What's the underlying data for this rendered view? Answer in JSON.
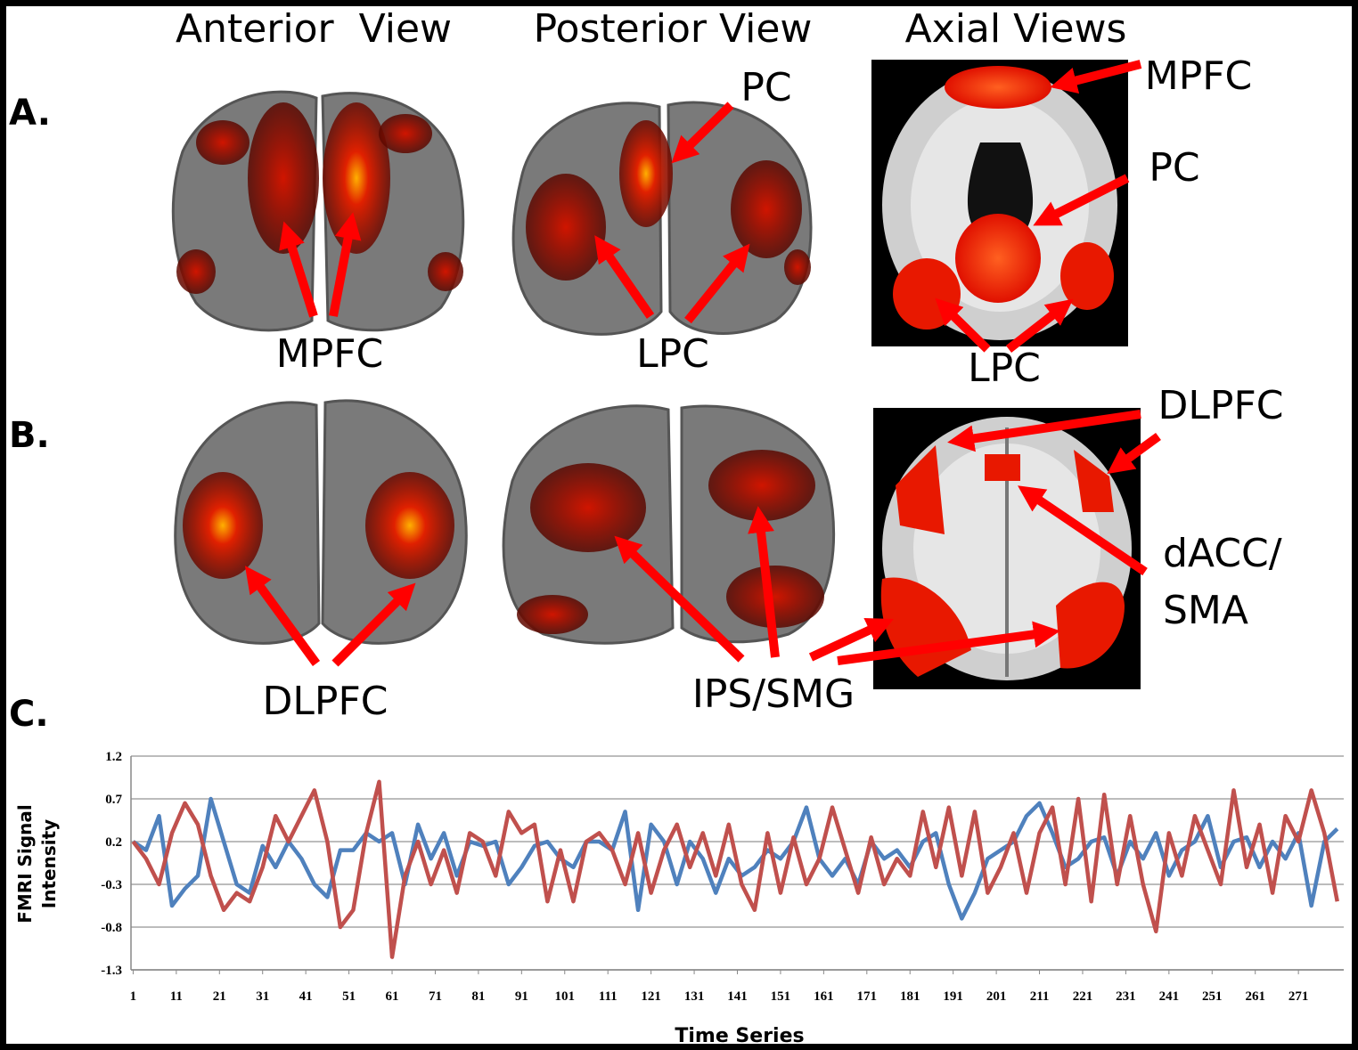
{
  "figure": {
    "columns": [
      "Anterior  View",
      "Posterior View",
      "Axial Views"
    ],
    "panel_letters": [
      "A.",
      "B.",
      "C."
    ],
    "row_a": {
      "anterior": "MPFC",
      "posterior_top": "PC",
      "posterior_bottom": "LPC",
      "axial_top": "MPFC",
      "axial_mid": "PC",
      "axial_bottom": "LPC"
    },
    "row_b": {
      "anterior": "DLPFC",
      "posterior": "IPS/SMG",
      "axial_top": "DLPFC",
      "axial_mid": [
        "dACC/",
        "SMA"
      ]
    }
  },
  "chart_data": {
    "type": "line",
    "xlabel": "Time Series",
    "ylabel": [
      "FMRI Signal",
      "Intensity"
    ],
    "x": [
      1,
      4,
      7,
      10,
      13,
      16,
      19,
      22,
      25,
      28,
      31,
      34,
      37,
      40,
      43,
      46,
      49,
      52,
      55,
      58,
      61,
      64,
      67,
      70,
      73,
      76,
      79,
      82,
      85,
      88,
      91,
      94,
      97,
      100,
      103,
      106,
      109,
      112,
      115,
      118,
      121,
      124,
      127,
      130,
      133,
      136,
      139,
      142,
      145,
      148,
      151,
      154,
      157,
      160,
      163,
      166,
      169,
      172,
      175,
      178,
      181,
      184,
      187,
      190,
      193,
      196,
      199,
      202,
      205,
      208,
      211,
      214,
      217,
      220,
      223,
      226,
      229,
      232,
      235,
      238,
      241,
      244,
      247,
      250,
      253,
      256,
      259,
      262,
      265,
      268,
      271,
      274,
      277,
      280
    ],
    "series": [
      {
        "color": "#4f81bd",
        "values": [
          0.2,
          0.1,
          0.5,
          -0.55,
          -0.35,
          -0.2,
          0.7,
          0.2,
          -0.3,
          -0.4,
          0.15,
          -0.1,
          0.2,
          0,
          -0.3,
          -0.45,
          0.1,
          0.1,
          0.3,
          0.2,
          0.3,
          -0.3,
          0.4,
          0,
          0.3,
          -0.2,
          0.2,
          0.15,
          0.2,
          -0.3,
          -0.1,
          0.15,
          0.2,
          0,
          -0.1,
          0.2,
          0.2,
          0.1,
          0.55,
          -0.6,
          0.4,
          0.2,
          -0.3,
          0.2,
          0,
          -0.4,
          0,
          -0.2,
          -0.1,
          0.1,
          0,
          0.2,
          0.6,
          0,
          -0.2,
          0,
          -0.3,
          0.2,
          0,
          0.1,
          -0.1,
          0.2,
          0.3,
          -0.3,
          -0.7,
          -0.4,
          0,
          0.1,
          0.2,
          0.5,
          0.65,
          0.3,
          -0.1,
          0,
          0.2,
          0.25,
          -0.2,
          0.2,
          0,
          0.3,
          -0.2,
          0.1,
          0.2,
          0.5,
          -0.1,
          0.2,
          0.25,
          -0.1,
          0.2,
          0,
          0.3,
          -0.55,
          0.2,
          0.35
        ]
      },
      {
        "color": "#c0504d",
        "values": [
          0.2,
          0,
          -0.3,
          0.3,
          0.65,
          0.4,
          -0.2,
          -0.6,
          -0.4,
          -0.5,
          -0.1,
          0.5,
          0.2,
          0.5,
          0.8,
          0.2,
          -0.8,
          -0.6,
          0.3,
          0.9,
          -1.15,
          -0.2,
          0.2,
          -0.3,
          0.1,
          -0.4,
          0.3,
          0.2,
          -0.2,
          0.55,
          0.3,
          0.4,
          -0.5,
          0.1,
          -0.5,
          0.2,
          0.3,
          0.1,
          -0.3,
          0.3,
          -0.4,
          0.1,
          0.4,
          -0.1,
          0.3,
          -0.2,
          0.4,
          -0.3,
          -0.6,
          0.3,
          -0.4,
          0.25,
          -0.3,
          0,
          0.6,
          0.1,
          -0.4,
          0.25,
          -0.3,
          0,
          -0.2,
          0.55,
          -0.1,
          0.6,
          -0.2,
          0.55,
          -0.4,
          -0.1,
          0.3,
          -0.4,
          0.3,
          0.6,
          -0.3,
          0.7,
          -0.5,
          0.75,
          -0.3,
          0.5,
          -0.3,
          -0.85,
          0.3,
          -0.2,
          0.5,
          0.1,
          -0.3,
          0.8,
          -0.1,
          0.4,
          -0.4,
          0.5,
          0.2,
          0.8,
          0.3,
          -0.5
        ]
      }
    ],
    "xlim": [
      0.5,
      281.5
    ],
    "xticks": [
      1,
      11,
      21,
      31,
      41,
      51,
      61,
      71,
      81,
      91,
      101,
      111,
      121,
      131,
      141,
      151,
      161,
      171,
      181,
      191,
      201,
      211,
      221,
      231,
      241,
      251,
      261,
      271
    ],
    "ylim": [
      -1.3,
      1.2
    ],
    "yticks": [
      -1.3,
      -0.8,
      -0.3,
      0.2,
      0.7,
      1.2
    ],
    "grid": true
  }
}
